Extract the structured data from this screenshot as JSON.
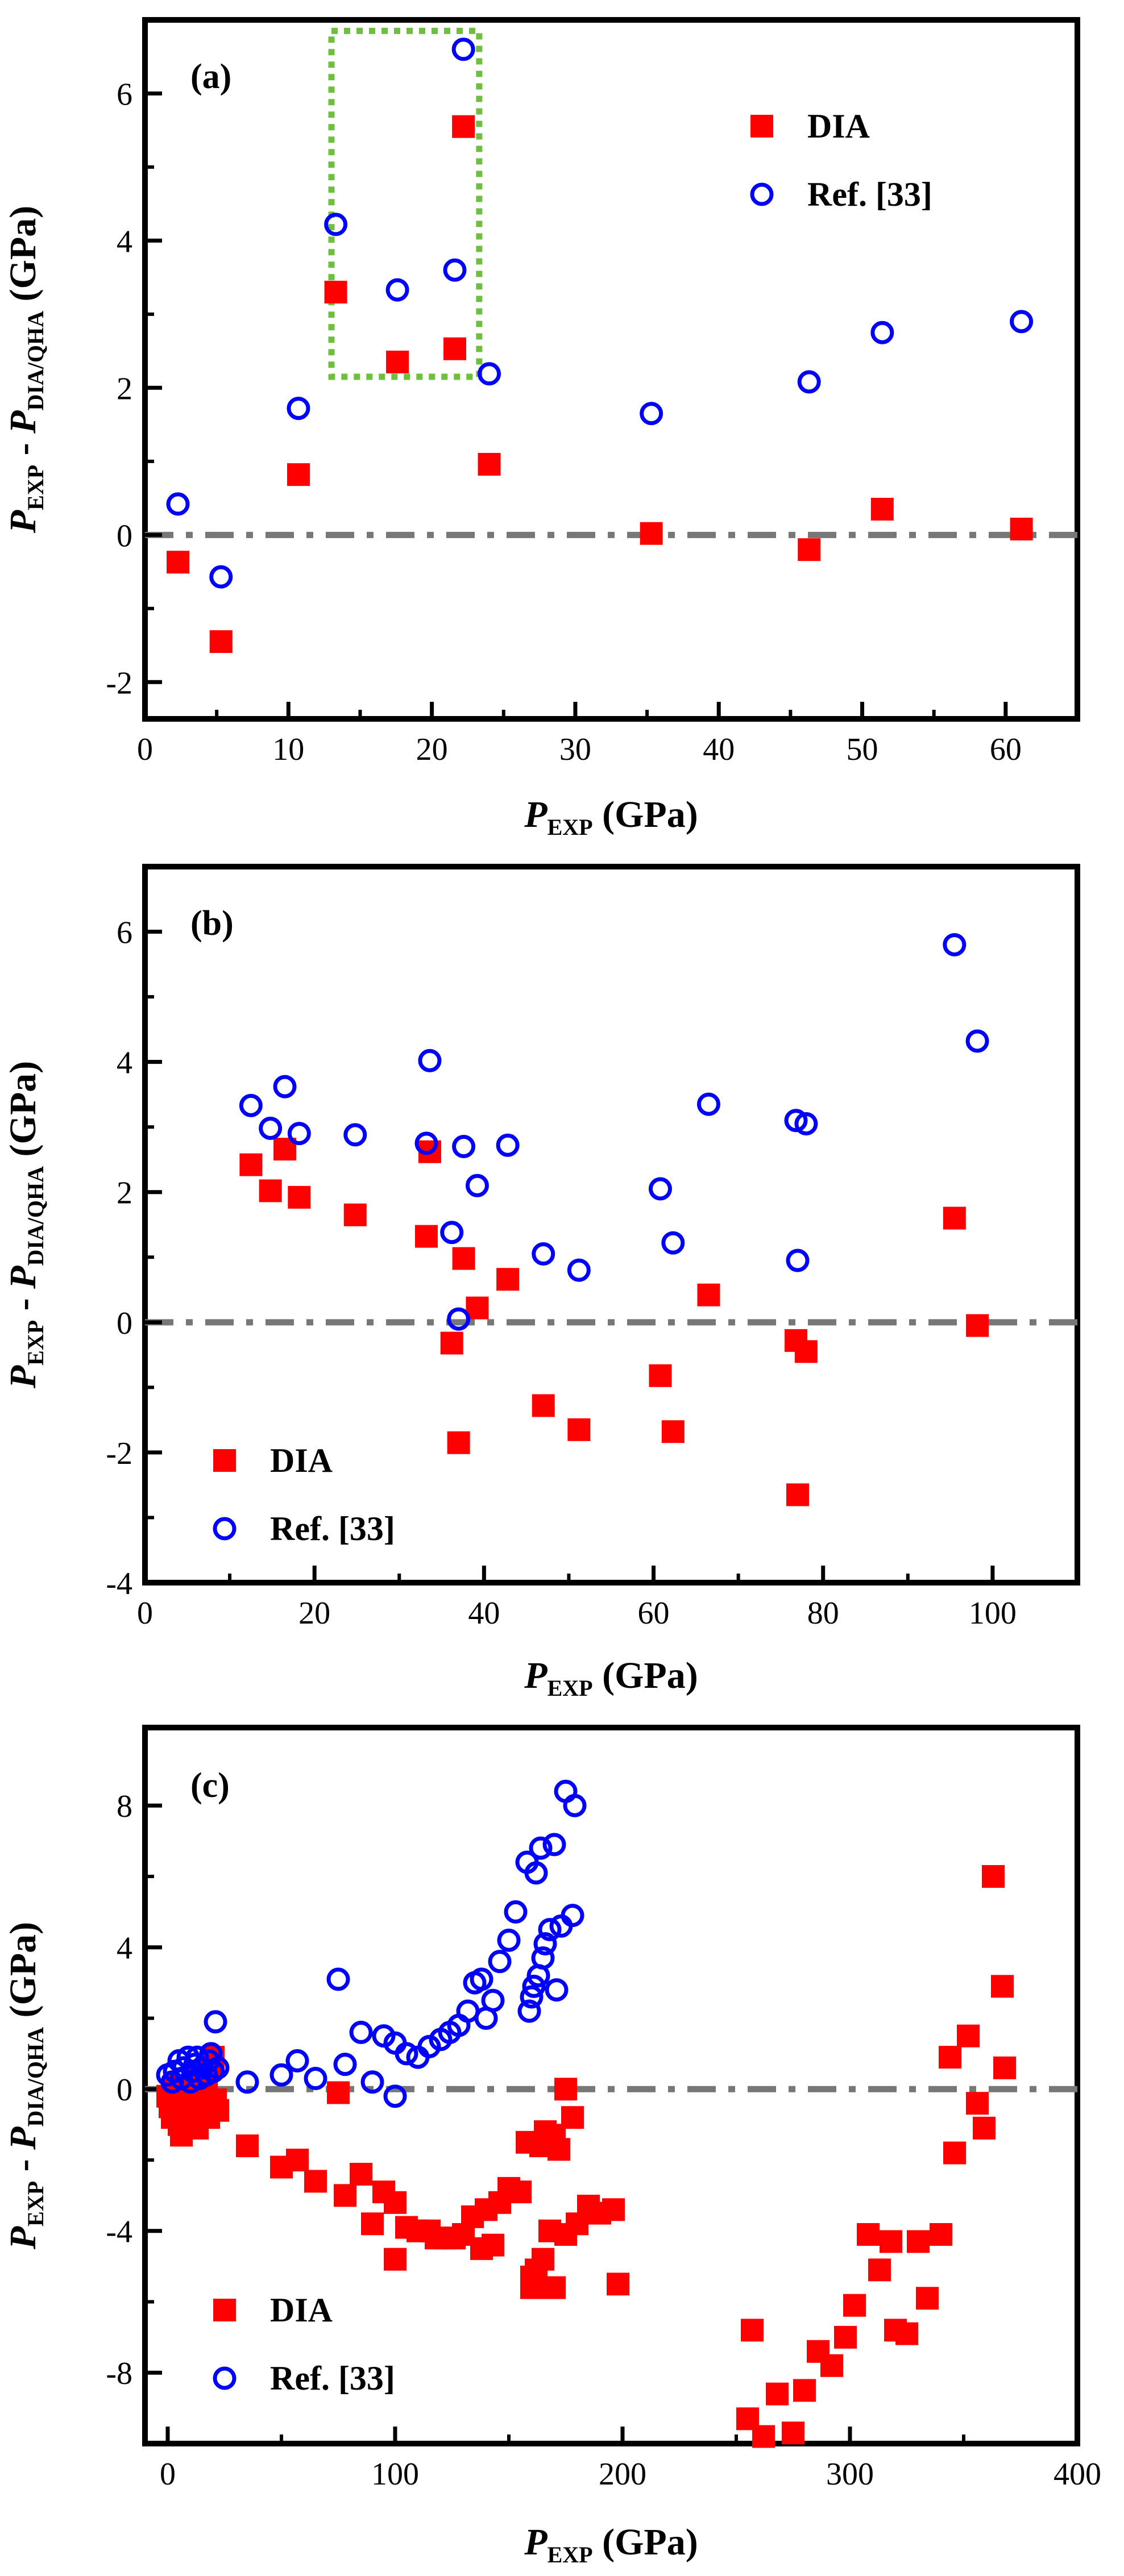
{
  "chart_data": [
    {
      "type": "scatter",
      "panel_label": "(a)",
      "xlabel": {
        "main": "P",
        "sub": "EXP",
        "unit": " (GPa)"
      },
      "ylabel": {
        "p1": "P",
        "s1": "EXP",
        "mid": " - ",
        "p2": "P",
        "s2": "DIA/QHA",
        "unit": " (GPa)"
      },
      "xlim": [
        0,
        65
      ],
      "ylim": [
        -2.5,
        7
      ],
      "xticks": [
        0,
        10,
        20,
        30,
        40,
        50,
        60
      ],
      "yticks": [
        -2,
        0,
        2,
        4,
        6
      ],
      "legend_position": "top-right",
      "zero_line": true,
      "highlight_box": {
        "x0": 13,
        "x1": 23.3,
        "y0": 2.15,
        "y1": 6.85,
        "color": "#6fbf3f"
      },
      "series": [
        {
          "name": "DIA",
          "marker": "filled-square",
          "color": "#ff0000",
          "points": [
            [
              2.3,
              -0.37
            ],
            [
              5.3,
              -1.45
            ],
            [
              10.7,
              0.82
            ],
            [
              13.3,
              3.3
            ],
            [
              17.6,
              2.35
            ],
            [
              21.6,
              2.53
            ],
            [
              22.2,
              5.55
            ],
            [
              24,
              0.96
            ],
            [
              35.3,
              0.02
            ],
            [
              46.3,
              -0.2
            ],
            [
              51.4,
              0.35
            ],
            [
              61.1,
              0.08
            ]
          ]
        },
        {
          "name": "Ref. [33]",
          "marker": "open-circle",
          "color": "#0000ff",
          "points": [
            [
              2.3,
              0.42
            ],
            [
              5.3,
              -0.57
            ],
            [
              10.7,
              1.72
            ],
            [
              13.3,
              4.22
            ],
            [
              17.6,
              3.33
            ],
            [
              21.6,
              3.6
            ],
            [
              22.2,
              6.6
            ],
            [
              24,
              2.19
            ],
            [
              35.3,
              1.65
            ],
            [
              46.3,
              2.08
            ],
            [
              51.4,
              2.75
            ],
            [
              61.1,
              2.9
            ]
          ]
        }
      ]
    },
    {
      "type": "scatter",
      "panel_label": "(b)",
      "xlabel": {
        "main": "P",
        "sub": "EXP",
        "unit": " (GPa)"
      },
      "ylabel": {
        "p1": "P",
        "s1": "EXP",
        "mid": " - ",
        "p2": "P",
        "s2": "DIA/QHA",
        "unit": " (GPa)"
      },
      "xlim": [
        0,
        110
      ],
      "ylim": [
        -4,
        7
      ],
      "xticks": [
        0,
        20,
        40,
        60,
        80,
        100
      ],
      "yticks": [
        -4,
        -2,
        0,
        2,
        4,
        6
      ],
      "legend_position": "bottom-left",
      "zero_line": true,
      "series": [
        {
          "name": "DIA",
          "marker": "filled-square",
          "color": "#ff0000",
          "points": [
            [
              12.5,
              2.42
            ],
            [
              14.8,
              2.02
            ],
            [
              16.5,
              2.66
            ],
            [
              18.2,
              1.92
            ],
            [
              24.8,
              1.65
            ],
            [
              33.2,
              1.32
            ],
            [
              33.6,
              2.62
            ],
            [
              36.2,
              -0.32
            ],
            [
              37.0,
              -1.85
            ],
            [
              37.6,
              0.98
            ],
            [
              39.2,
              0.22
            ],
            [
              42.8,
              0.66
            ],
            [
              47.0,
              -1.28
            ],
            [
              51.2,
              -1.65
            ],
            [
              60.8,
              -0.82
            ],
            [
              62.3,
              -1.68
            ],
            [
              66.5,
              0.42
            ],
            [
              76.8,
              -0.28
            ],
            [
              77.0,
              -2.65
            ],
            [
              78.0,
              -0.45
            ],
            [
              95.5,
              1.6
            ],
            [
              98.2,
              -0.05
            ]
          ]
        },
        {
          "name": "Ref. [33]",
          "marker": "open-circle",
          "color": "#0000ff",
          "points": [
            [
              12.5,
              3.33
            ],
            [
              14.8,
              2.98
            ],
            [
              16.5,
              3.62
            ],
            [
              18.2,
              2.9
            ],
            [
              24.8,
              2.88
            ],
            [
              33.2,
              2.75
            ],
            [
              33.6,
              4.02
            ],
            [
              36.2,
              1.38
            ],
            [
              37.0,
              0.05
            ],
            [
              37.6,
              2.7
            ],
            [
              39.2,
              2.1
            ],
            [
              42.8,
              2.72
            ],
            [
              47.0,
              1.05
            ],
            [
              51.2,
              0.8
            ],
            [
              60.8,
              2.05
            ],
            [
              62.3,
              1.22
            ],
            [
              66.5,
              3.35
            ],
            [
              76.8,
              3.1
            ],
            [
              77.0,
              0.95
            ],
            [
              78.0,
              3.05
            ],
            [
              95.5,
              5.8
            ],
            [
              98.2,
              4.32
            ]
          ]
        }
      ]
    },
    {
      "type": "scatter",
      "panel_label": "(c)",
      "xlabel": {
        "main": "P",
        "sub": "EXP",
        "unit": " (GPa)"
      },
      "ylabel": {
        "p1": "P",
        "s1": "EXP",
        "mid": " - ",
        "p2": "P",
        "s2": "DIA/QHA",
        "unit": " (GPa)"
      },
      "xlim": [
        -10,
        400
      ],
      "ylim": [
        -10,
        10.2
      ],
      "xticks": [
        0,
        100,
        200,
        300,
        400
      ],
      "yticks": [
        -8,
        -4,
        0,
        4,
        8
      ],
      "legend_position": "bottom-left",
      "zero_line": true,
      "series": [
        {
          "name": "DIA",
          "marker": "filled-square",
          "color": "#ff0000",
          "points": [
            [
              0,
              -0.2
            ],
            [
              1,
              -0.5
            ],
            [
              2,
              -0.8
            ],
            [
              3,
              0.1
            ],
            [
              4,
              -0.3
            ],
            [
              5,
              -1.0
            ],
            [
              6,
              -1.3
            ],
            [
              7,
              -0.6
            ],
            [
              8,
              -0.2
            ],
            [
              9,
              -0.9
            ],
            [
              10,
              -0.4
            ],
            [
              11,
              0.3
            ],
            [
              12,
              -0.7
            ],
            [
              13,
              -1.1
            ],
            [
              14,
              -0.2
            ],
            [
              15,
              -0.5
            ],
            [
              16,
              0.4
            ],
            [
              17,
              -0.1
            ],
            [
              18,
              -0.8
            ],
            [
              19,
              0.6
            ],
            [
              20,
              0.9
            ],
            [
              21,
              -0.3
            ],
            [
              22,
              -0.6
            ],
            [
              35,
              -1.6
            ],
            [
              50,
              -2.2
            ],
            [
              57,
              -2.0
            ],
            [
              65,
              -2.6
            ],
            [
              75,
              -0.1
            ],
            [
              78,
              -3.0
            ],
            [
              85,
              -2.4
            ],
            [
              90,
              -3.8
            ],
            [
              95,
              -2.9
            ],
            [
              100,
              -4.8
            ],
            [
              100,
              -3.2
            ],
            [
              105,
              -3.9
            ],
            [
              110,
              -4.0
            ],
            [
              115,
              -4.0
            ],
            [
              118,
              -4.2
            ],
            [
              122,
              -4.2
            ],
            [
              126,
              -4.2
            ],
            [
              130,
              -4.1
            ],
            [
              134,
              -3.6
            ],
            [
              138,
              -4.5
            ],
            [
              140,
              -3.4
            ],
            [
              143,
              -4.4
            ],
            [
              146,
              -3.2
            ],
            [
              150,
              -2.8
            ],
            [
              155,
              -2.9
            ],
            [
              158,
              -1.5
            ],
            [
              160,
              -5.6
            ],
            [
              160,
              -5.3
            ],
            [
              162,
              -5.1
            ],
            [
              164,
              -1.6
            ],
            [
              165,
              -4.8
            ],
            [
              166,
              -1.2
            ],
            [
              168,
              -4.0
            ],
            [
              170,
              -5.6
            ],
            [
              170,
              -1.3
            ],
            [
              172,
              -1.7
            ],
            [
              175,
              -4.1
            ],
            [
              175,
              0.0
            ],
            [
              178,
              -0.8
            ],
            [
              180,
              -3.8
            ],
            [
              185,
              -3.3
            ],
            [
              190,
              -3.5
            ],
            [
              196,
              -3.4
            ],
            [
              198,
              -5.5
            ],
            [
              255,
              -9.3
            ],
            [
              257,
              -6.8
            ],
            [
              262,
              -9.8
            ],
            [
              268,
              -8.6
            ],
            [
              275,
              -9.7
            ],
            [
              280,
              -8.5
            ],
            [
              286,
              -7.4
            ],
            [
              292,
              -7.8
            ],
            [
              298,
              -7.0
            ],
            [
              302,
              -6.1
            ],
            [
              308,
              -4.1
            ],
            [
              313,
              -5.1
            ],
            [
              318,
              -4.3
            ],
            [
              320,
              -6.8
            ],
            [
              325,
              -6.9
            ],
            [
              330,
              -4.3
            ],
            [
              334,
              -5.9
            ],
            [
              340,
              -4.1
            ],
            [
              344,
              0.9
            ],
            [
              346,
              -1.8
            ],
            [
              352,
              1.5
            ],
            [
              356,
              -0.4
            ],
            [
              359,
              -1.1
            ],
            [
              363,
              6.0
            ],
            [
              367,
              2.9
            ],
            [
              368,
              0.6
            ]
          ]
        },
        {
          "name": "Ref. [33]",
          "marker": "open-circle",
          "color": "#0000ff",
          "points": [
            [
              0,
              0.4
            ],
            [
              2,
              0.2
            ],
            [
              3,
              0.5
            ],
            [
              5,
              0.8
            ],
            [
              6,
              0.3
            ],
            [
              7,
              0.6
            ],
            [
              9,
              0.9
            ],
            [
              10,
              0.2
            ],
            [
              11,
              0.5
            ],
            [
              12,
              0.7
            ],
            [
              13,
              0.9
            ],
            [
              14,
              0.3
            ],
            [
              15,
              0.6
            ],
            [
              17,
              0.4
            ],
            [
              18,
              0.8
            ],
            [
              19,
              1.0
            ],
            [
              20,
              0.5
            ],
            [
              21,
              1.9
            ],
            [
              22,
              0.6
            ],
            [
              35,
              0.2
            ],
            [
              50,
              0.4
            ],
            [
              57,
              0.8
            ],
            [
              65,
              0.3
            ],
            [
              75,
              3.1
            ],
            [
              78,
              0.7
            ],
            [
              85,
              1.6
            ],
            [
              90,
              0.2
            ],
            [
              95,
              1.5
            ],
            [
              100,
              1.3
            ],
            [
              100,
              -0.2
            ],
            [
              105,
              1.0
            ],
            [
              110,
              0.9
            ],
            [
              115,
              1.2
            ],
            [
              120,
              1.4
            ],
            [
              124,
              1.6
            ],
            [
              128,
              1.8
            ],
            [
              132,
              2.2
            ],
            [
              135,
              3.0
            ],
            [
              138,
              3.1
            ],
            [
              140,
              2.0
            ],
            [
              143,
              2.5
            ],
            [
              146,
              3.6
            ],
            [
              150,
              4.2
            ],
            [
              153,
              5.0
            ],
            [
              158,
              6.4
            ],
            [
              159,
              2.2
            ],
            [
              160,
              2.6
            ],
            [
              161,
              2.9
            ],
            [
              162,
              6.1
            ],
            [
              163,
              3.2
            ],
            [
              164,
              6.8
            ],
            [
              165,
              3.7
            ],
            [
              166,
              4.1
            ],
            [
              168,
              4.5
            ],
            [
              170,
              6.9
            ],
            [
              171,
              2.8
            ],
            [
              173,
              4.6
            ],
            [
              175,
              8.4
            ],
            [
              178,
              4.9
            ],
            [
              179,
              8.0
            ]
          ]
        }
      ]
    }
  ]
}
